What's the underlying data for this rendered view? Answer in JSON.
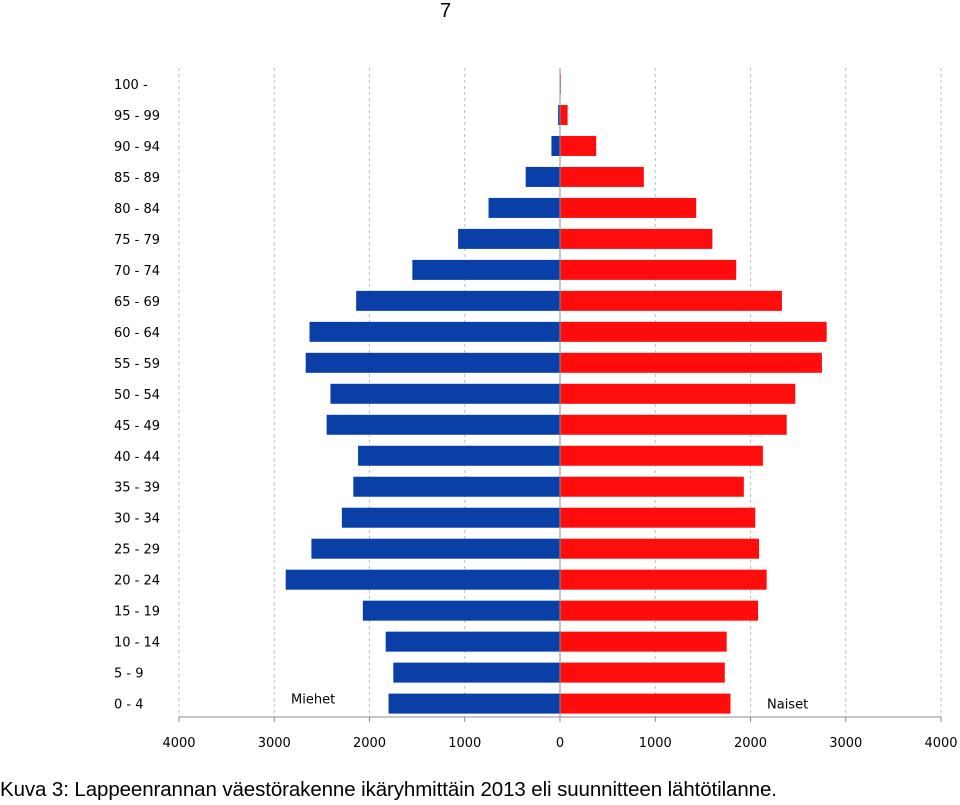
{
  "page": {
    "number": "7"
  },
  "caption": "Kuva 3: Lappeenrannan väestörakenne ikäryhmittäin 2013 eli suunnitteen lähtötilanne.",
  "colors": {
    "men": "#0A3FA8",
    "women": "#FF0D0D",
    "grid": "#BFBFBF",
    "axis": "#8C8C8C"
  },
  "chart_data": {
    "type": "bar",
    "orientation": "horizontal",
    "title": "",
    "categories": [
      "0 - 4",
      "5 - 9",
      "10 - 14",
      "15 - 19",
      "20 - 24",
      "25 - 29",
      "30 - 34",
      "35 - 39",
      "40 - 44",
      "45 - 49",
      "50 - 54",
      "55 - 59",
      "60 - 64",
      "65 - 69",
      "70 - 74",
      "75 - 79",
      "80 - 84",
      "85 - 89",
      "90 - 94",
      "95 - 99",
      "100 -"
    ],
    "series": [
      {
        "name": "Miehet",
        "side": "left",
        "values": [
          1800,
          1750,
          1830,
          2070,
          2880,
          2610,
          2290,
          2170,
          2120,
          2450,
          2410,
          2670,
          2630,
          2140,
          1550,
          1070,
          750,
          360,
          90,
          20,
          5
        ]
      },
      {
        "name": "Naiset",
        "side": "right",
        "values": [
          1790,
          1730,
          1750,
          2080,
          2170,
          2090,
          2050,
          1930,
          2130,
          2380,
          2470,
          2750,
          2800,
          2330,
          1850,
          1600,
          1430,
          880,
          380,
          80,
          8
        ]
      }
    ],
    "xlim": [
      -4000,
      4000
    ],
    "xticks": [
      -4000,
      -3000,
      -2000,
      -1000,
      0,
      1000,
      2000,
      3000,
      4000
    ],
    "xtick_labels": [
      "4000",
      "3000",
      "2000",
      "1000",
      "0",
      "1000",
      "2000",
      "3000",
      "4000"
    ],
    "grid": true,
    "legend": {
      "men_label": "Miehet",
      "women_label": "Naiset",
      "placement": "bottom, beside bars"
    }
  }
}
